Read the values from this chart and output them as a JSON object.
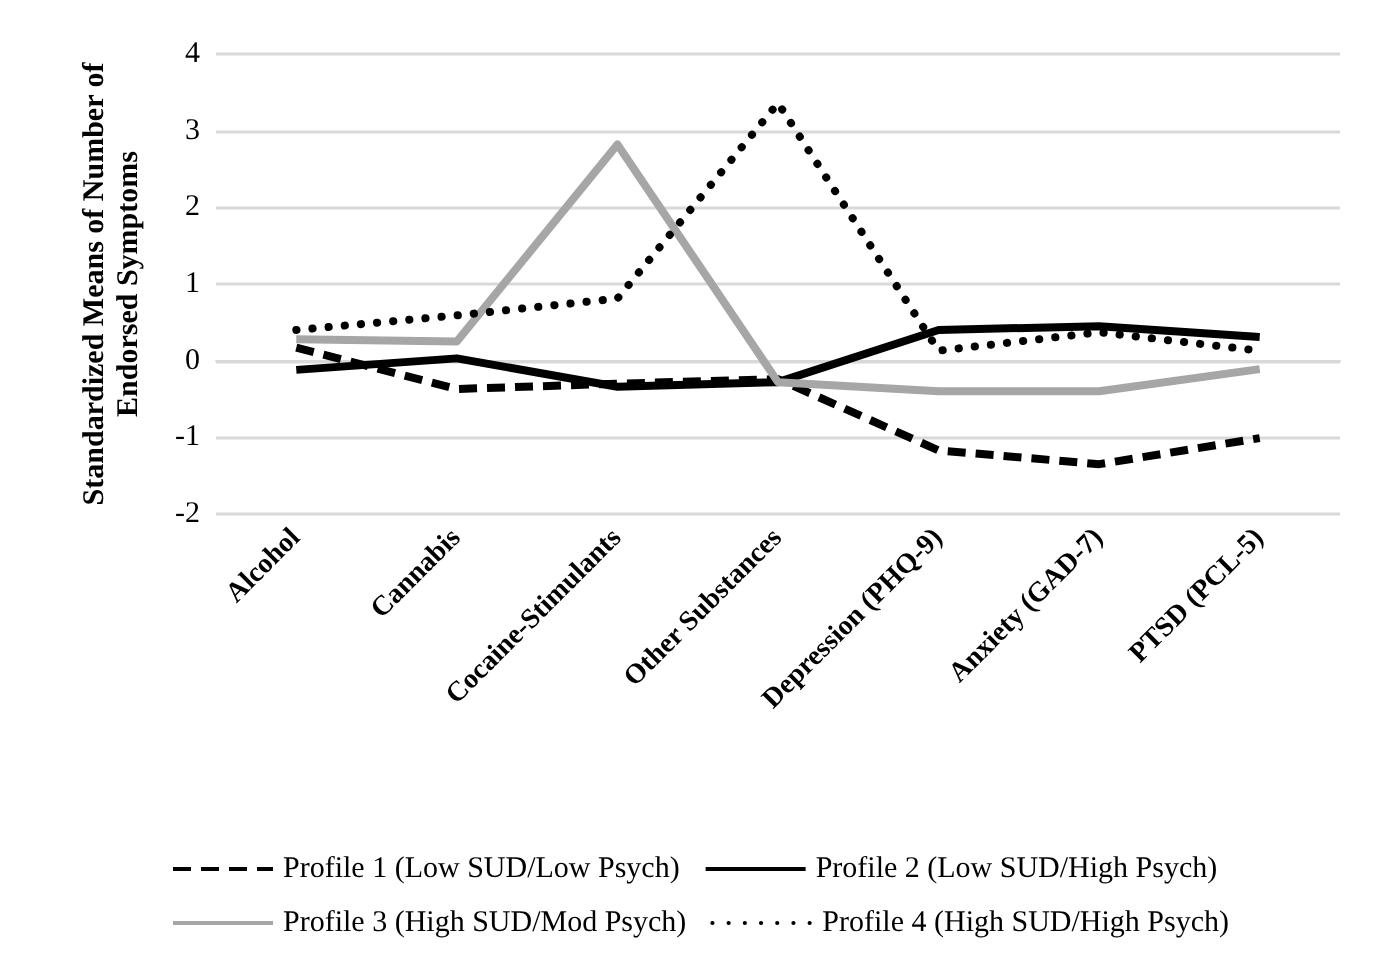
{
  "chart_data": {
    "type": "line",
    "ylabel": "Standardized Means of Number of Endorsed Symptoms",
    "categories": [
      "Alcohol",
      "Cannabis",
      "Cocaine-Stimulants",
      "Other Substances",
      "Depression (PHQ-9)",
      "Anxiety (GAD-7)",
      "PTSD (PCL-5)"
    ],
    "series": [
      {
        "name": "Profile 1 (Low SUD/Low Psych)",
        "color": "#000000",
        "line_style": "dashed",
        "values": [
          0.17,
          -0.37,
          -0.3,
          -0.24,
          -1.17,
          -1.35,
          -1.01
        ]
      },
      {
        "name": "Profile 2 (Low SUD/High Psych)",
        "color": "#000000",
        "line_style": "solid",
        "values": [
          -0.12,
          0.03,
          -0.34,
          -0.28,
          0.4,
          0.45,
          0.31
        ]
      },
      {
        "name": "Profile 3 (High SUD/Mod Psych)",
        "color": "#a6a6a6",
        "line_style": "solid",
        "values": [
          0.28,
          0.25,
          2.82,
          -0.28,
          -0.4,
          -0.4,
          -0.11
        ]
      },
      {
        "name": "Profile 4 (High SUD/High Psych)",
        "color": "#000000",
        "line_style": "dotted",
        "values": [
          0.4,
          0.59,
          0.81,
          3.36,
          0.13,
          0.37,
          0.13
        ]
      }
    ],
    "ylim": [
      -2,
      4
    ],
    "yticks": [
      -2,
      -1,
      0,
      1,
      2,
      3,
      4
    ],
    "grid": "y",
    "legend": "bottom",
    "marker": "none"
  }
}
